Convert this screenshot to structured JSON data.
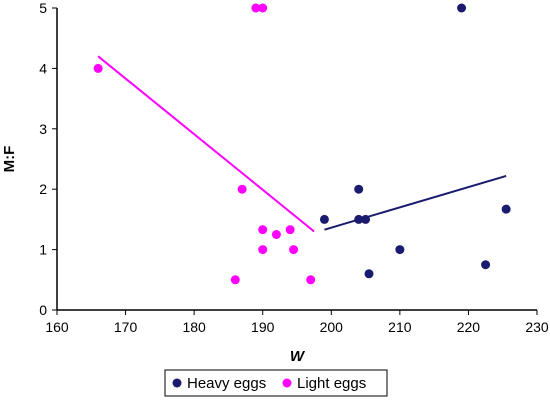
{
  "chart_data": {
    "type": "scatter",
    "xlabel": "W",
    "ylabel": "M:F",
    "xlim": [
      160,
      230
    ],
    "ylim": [
      0,
      5
    ],
    "xticks": [
      160,
      170,
      180,
      190,
      200,
      210,
      220,
      230
    ],
    "yticks": [
      0,
      1,
      2,
      3,
      4,
      5
    ],
    "grid": false,
    "legend_position": "bottom",
    "series": [
      {
        "name": "Heavy eggs",
        "color": "#1a1a6e",
        "points": [
          [
            199,
            1.5
          ],
          [
            204,
            2.0
          ],
          [
            204,
            1.5
          ],
          [
            205,
            1.5
          ],
          [
            205.5,
            0.6
          ],
          [
            210,
            1.0
          ],
          [
            219,
            5.0
          ],
          [
            222.5,
            0.75
          ],
          [
            225.5,
            1.67
          ]
        ],
        "trendline": [
          [
            199,
            1.33
          ],
          [
            225.5,
            2.22
          ]
        ]
      },
      {
        "name": "Light eggs",
        "color": "#ff00ff",
        "points": [
          [
            166,
            4.0
          ],
          [
            186,
            0.5
          ],
          [
            187,
            2.0
          ],
          [
            189,
            5.0
          ],
          [
            190,
            5.0
          ],
          [
            190,
            1.33
          ],
          [
            190,
            1.0
          ],
          [
            192,
            1.25
          ],
          [
            194,
            1.33
          ],
          [
            194.5,
            1.0
          ],
          [
            197,
            0.5
          ]
        ],
        "trendline": [
          [
            166,
            4.2
          ],
          [
            197.5,
            1.3
          ]
        ]
      }
    ]
  }
}
